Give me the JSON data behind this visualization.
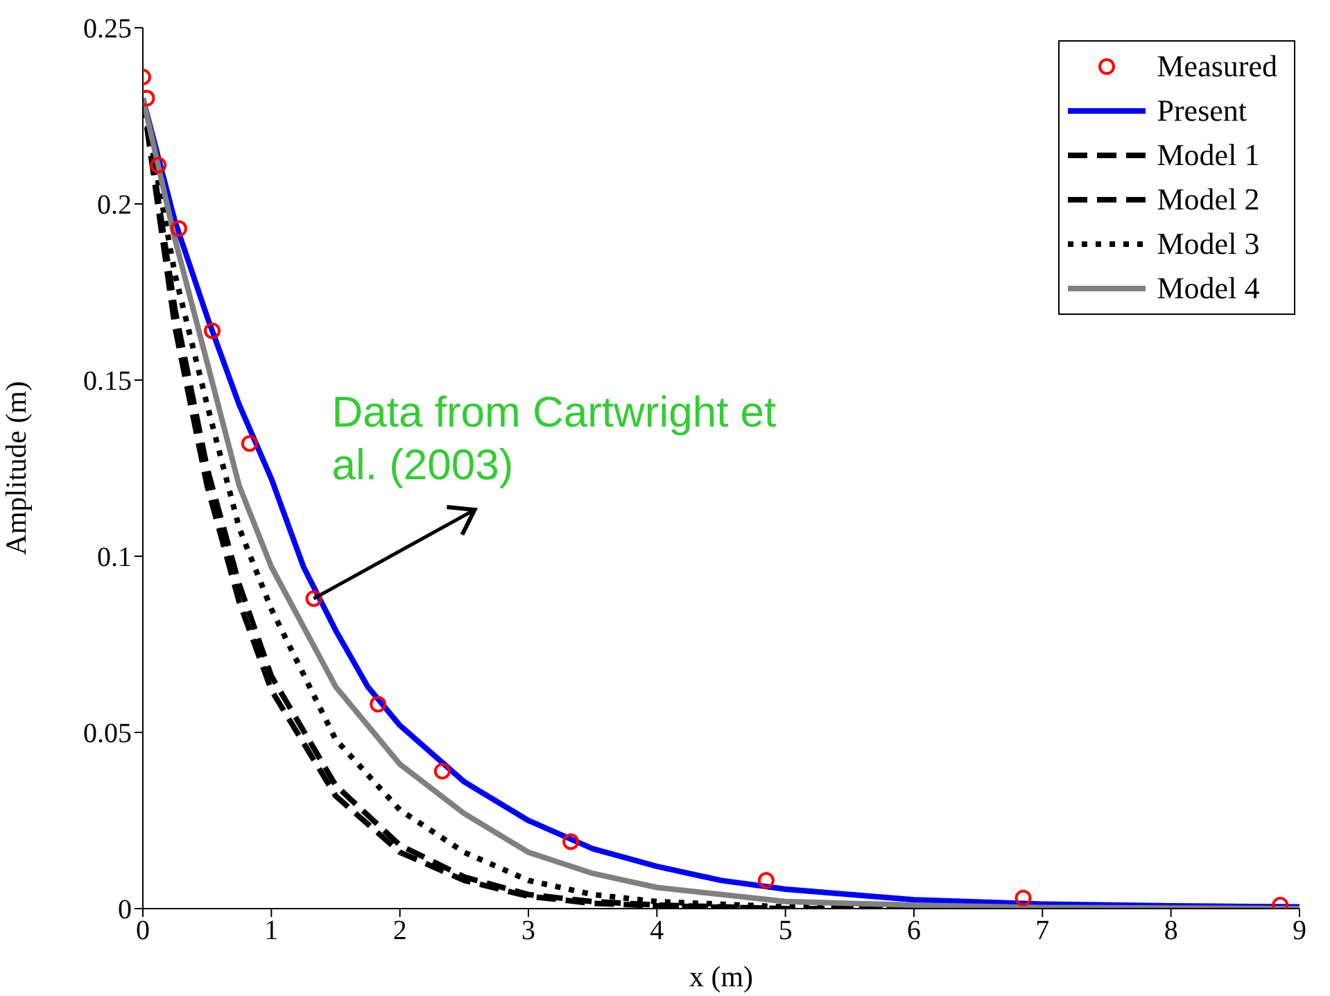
{
  "chart_data": {
    "type": "line",
    "xlabel": "x (m)",
    "ylabel": "Amplitude (m)",
    "xlim": [
      0,
      9
    ],
    "xticks": [
      0,
      1,
      2,
      3,
      4,
      5,
      6,
      7,
      8,
      9
    ],
    "ylim": [
      0,
      0.25
    ],
    "yticks": [
      0,
      0.05,
      0.1,
      0.15,
      0.2,
      0.25
    ],
    "grid": false,
    "legend": "top right",
    "series": [
      {
        "name": "Measured",
        "type": "scatter",
        "marker": "circle",
        "color": "#ff0000",
        "x": [
          0,
          0.03,
          0.12,
          0.28,
          0.54,
          0.83,
          1.33,
          1.83,
          2.33,
          3.33,
          4.85,
          6.85,
          8.85
        ],
        "values": [
          0.236,
          0.23,
          0.211,
          0.193,
          0.164,
          0.132,
          0.088,
          0.058,
          0.039,
          0.019,
          0.008,
          0.003,
          0.001
        ]
      },
      {
        "name": "Present",
        "line_style": "solid",
        "color": "#0000ff",
        "x": [
          0,
          0.25,
          0.5,
          0.75,
          1,
          1.25,
          1.5,
          1.75,
          2,
          2.5,
          3,
          3.5,
          4,
          4.5,
          5,
          6,
          7,
          8,
          9
        ],
        "values": [
          0.23,
          0.195,
          0.168,
          0.143,
          0.122,
          0.097,
          0.079,
          0.063,
          0.052,
          0.036,
          0.025,
          0.017,
          0.012,
          0.008,
          0.0055,
          0.0025,
          0.0013,
          0.0008,
          0.0005
        ]
      },
      {
        "name": "Model 1",
        "line_style": "dashed",
        "color": "#000000",
        "x": [
          0,
          0.25,
          0.5,
          0.75,
          1,
          1.5,
          2,
          2.5,
          3,
          3.5,
          4,
          5,
          6
        ],
        "values": [
          0.23,
          0.17,
          0.125,
          0.092,
          0.066,
          0.035,
          0.018,
          0.009,
          0.004,
          0.002,
          0.001,
          0,
          0
        ]
      },
      {
        "name": "Model 2",
        "line_style": "dashed",
        "color": "#000000",
        "x": [
          0,
          0.25,
          0.5,
          0.75,
          1,
          1.5,
          2,
          2.5,
          3,
          3.5,
          4,
          5
        ],
        "values": [
          0.23,
          0.165,
          0.12,
          0.087,
          0.062,
          0.032,
          0.016,
          0.008,
          0.0035,
          0.0015,
          0.0008,
          0
        ]
      },
      {
        "name": "Model 3",
        "line_style": "dotted",
        "color": "#000000",
        "x": [
          0,
          0.25,
          0.5,
          0.75,
          1,
          1.5,
          2,
          2.5,
          3,
          3.5,
          4,
          5,
          6,
          7
        ],
        "values": [
          0.23,
          0.18,
          0.143,
          0.108,
          0.085,
          0.048,
          0.028,
          0.016,
          0.008,
          0.004,
          0.002,
          0.0005,
          0,
          0
        ]
      },
      {
        "name": "Model 4",
        "line_style": "solid",
        "color": "#808080",
        "x": [
          0,
          0.25,
          0.5,
          0.75,
          1,
          1.5,
          2,
          2.5,
          3,
          3.5,
          4,
          5,
          6,
          7,
          9
        ],
        "values": [
          0.23,
          0.19,
          0.155,
          0.12,
          0.097,
          0.063,
          0.041,
          0.027,
          0.016,
          0.01,
          0.006,
          0.002,
          0.001,
          0.0003,
          0
        ]
      }
    ],
    "annotations": [
      {
        "text": "Data from Cartwright et al. (2003)",
        "x": 1.33,
        "y": 0.088
      }
    ]
  }
}
